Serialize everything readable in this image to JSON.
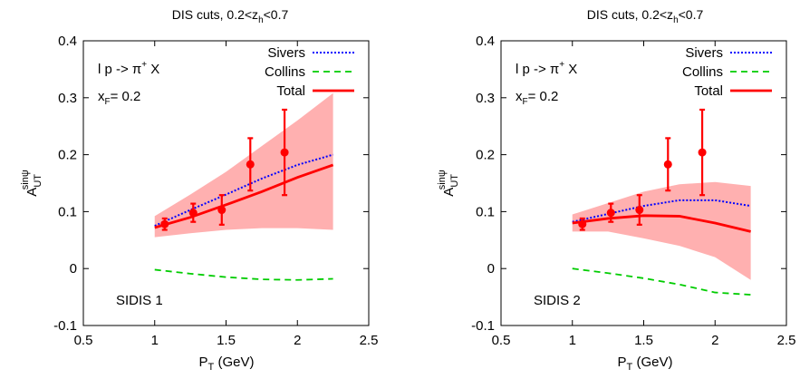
{
  "chart_data": [
    {
      "type": "line",
      "title": {
        "main": "DIS cuts, 0.2<z",
        "sub": "h",
        "tail": "<0.7"
      },
      "xlabel": {
        "main": "P",
        "sub": "T",
        "tail": " (GeV)"
      },
      "ylabel": {
        "main": "A",
        "sup": "sinψ",
        "sub": "UT"
      },
      "xlim": [
        0.5,
        2.5
      ],
      "ylim": [
        -0.1,
        0.4
      ],
      "xticks": [
        "0.5",
        "1",
        "1.5",
        "2",
        "2.5"
      ],
      "yticks": [
        "-0.1",
        "0",
        "0.1",
        "0.2",
        "0.3",
        "0.4"
      ],
      "grid": false,
      "legend_position": "top-right",
      "annotations": {
        "process": {
          "main": "l p -> π",
          "sup": "+",
          "tail": " X"
        },
        "xf": {
          "main": "x",
          "sub": "F",
          "tail": "= 0.2"
        },
        "panel_label": "SIDIS 1"
      },
      "series": [
        {
          "name": "Sivers",
          "color": "#0000ff",
          "style": "dotted",
          "x": [
            1.0,
            1.25,
            1.5,
            1.75,
            2.0,
            2.25
          ],
          "y": [
            0.075,
            0.103,
            0.13,
            0.158,
            0.182,
            0.2
          ]
        },
        {
          "name": "Collins",
          "color": "#00cc00",
          "style": "dashed",
          "x": [
            1.0,
            1.25,
            1.5,
            1.75,
            2.0,
            2.25
          ],
          "y": [
            -0.002,
            -0.009,
            -0.015,
            -0.019,
            -0.02,
            -0.018
          ]
        },
        {
          "name": "Total",
          "color": "#ff0000",
          "style": "solid",
          "x": [
            1.0,
            1.25,
            1.5,
            1.75,
            2.0,
            2.25
          ],
          "y": [
            0.072,
            0.09,
            0.112,
            0.135,
            0.16,
            0.182
          ]
        }
      ],
      "band": {
        "color": "#ffb0b0",
        "x": [
          1.0,
          1.25,
          1.5,
          1.75,
          2.0,
          2.25
        ],
        "upper": [
          0.092,
          0.13,
          0.17,
          0.215,
          0.26,
          0.308
        ],
        "lower": [
          0.055,
          0.062,
          0.068,
          0.071,
          0.071,
          0.068
        ]
      },
      "points": {
        "color": "#ff0000",
        "x": [
          1.07,
          1.27,
          1.47,
          1.67,
          1.91
        ],
        "y": [
          0.078,
          0.098,
          0.103,
          0.183,
          0.204
        ],
        "yerr_up": [
          0.01,
          0.016,
          0.026,
          0.046,
          0.075
        ],
        "yerr_down": [
          0.01,
          0.016,
          0.026,
          0.046,
          0.075
        ]
      }
    },
    {
      "type": "line",
      "title": {
        "main": "DIS cuts, 0.2<z",
        "sub": "h",
        "tail": "<0.7"
      },
      "xlabel": {
        "main": "P",
        "sub": "T",
        "tail": " (GeV)"
      },
      "ylabel": {
        "main": "A",
        "sup": "sinψ",
        "sub": "UT"
      },
      "xlim": [
        0.5,
        2.5
      ],
      "ylim": [
        -0.1,
        0.4
      ],
      "xticks": [
        "0.5",
        "1",
        "1.5",
        "2",
        "2.5"
      ],
      "yticks": [
        "-0.1",
        "0",
        "0.1",
        "0.2",
        "0.3",
        "0.4"
      ],
      "grid": false,
      "legend_position": "top-right",
      "annotations": {
        "process": {
          "main": "l p -> π",
          "sup": "+",
          "tail": " X"
        },
        "xf": {
          "main": "x",
          "sub": "F",
          "tail": "= 0.2"
        },
        "panel_label": "SIDIS 2"
      },
      "series": [
        {
          "name": "Sivers",
          "color": "#0000ff",
          "style": "dotted",
          "x": [
            1.0,
            1.25,
            1.5,
            1.75,
            2.0,
            2.25
          ],
          "y": [
            0.082,
            0.096,
            0.11,
            0.12,
            0.12,
            0.11
          ]
        },
        {
          "name": "Collins",
          "color": "#00cc00",
          "style": "dashed",
          "x": [
            1.0,
            1.25,
            1.5,
            1.75,
            2.0,
            2.25
          ],
          "y": [
            0.0,
            -0.008,
            -0.017,
            -0.028,
            -0.042,
            -0.046
          ]
        },
        {
          "name": "Total",
          "color": "#ff0000",
          "style": "solid",
          "x": [
            1.0,
            1.25,
            1.5,
            1.75,
            2.0,
            2.25
          ],
          "y": [
            0.08,
            0.088,
            0.093,
            0.092,
            0.08,
            0.065
          ]
        },
        {
          "name": "",
          "color": "#ff0000",
          "style": "solid",
          "x": [],
          "y": []
        }
      ],
      "band": {
        "color": "#ffb0b0",
        "x": [
          1.0,
          1.25,
          1.5,
          1.75,
          2.0,
          2.25
        ],
        "upper": [
          0.095,
          0.115,
          0.135,
          0.148,
          0.152,
          0.145
        ],
        "lower": [
          0.065,
          0.065,
          0.053,
          0.04,
          0.02,
          -0.02
        ]
      },
      "points": {
        "color": "#ff0000",
        "x": [
          1.07,
          1.27,
          1.47,
          1.67,
          1.91
        ],
        "y": [
          0.078,
          0.098,
          0.103,
          0.183,
          0.204
        ],
        "yerr_up": [
          0.01,
          0.016,
          0.026,
          0.046,
          0.075
        ],
        "yerr_down": [
          0.01,
          0.016,
          0.026,
          0.046,
          0.075
        ]
      }
    }
  ]
}
